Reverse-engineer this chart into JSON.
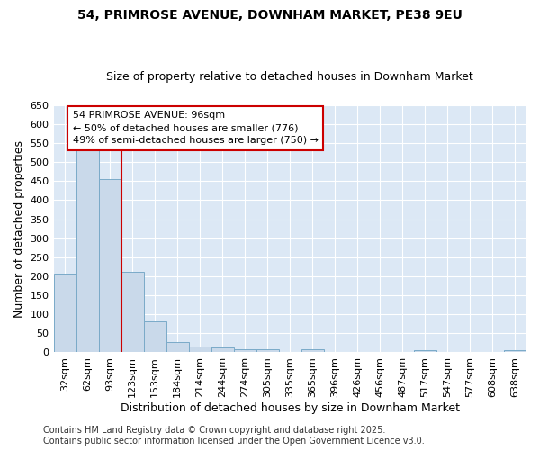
{
  "title": "54, PRIMROSE AVENUE, DOWNHAM MARKET, PE38 9EU",
  "subtitle": "Size of property relative to detached houses in Downham Market",
  "xlabel": "Distribution of detached houses by size in Downham Market",
  "ylabel": "Number of detached properties",
  "categories": [
    "32sqm",
    "62sqm",
    "93sqm",
    "123sqm",
    "153sqm",
    "184sqm",
    "214sqm",
    "244sqm",
    "274sqm",
    "305sqm",
    "335sqm",
    "365sqm",
    "396sqm",
    "426sqm",
    "456sqm",
    "487sqm",
    "517sqm",
    "547sqm",
    "577sqm",
    "608sqm",
    "638sqm"
  ],
  "values": [
    208,
    535,
    455,
    212,
    82,
    27,
    15,
    13,
    8,
    8,
    0,
    8,
    0,
    0,
    0,
    0,
    5,
    0,
    0,
    0,
    5
  ],
  "bar_color": "#c9d9ea",
  "bar_edge_color": "#7aaac8",
  "figure_bg_color": "#ffffff",
  "axes_bg_color": "#dce8f5",
  "grid_color": "#ffffff",
  "vline_color": "#cc0000",
  "annotation_text": "54 PRIMROSE AVENUE: 96sqm\n← 50% of detached houses are smaller (776)\n49% of semi-detached houses are larger (750) →",
  "annotation_box_facecolor": "#ffffff",
  "annotation_box_edgecolor": "#cc0000",
  "ylim": [
    0,
    650
  ],
  "yticks": [
    0,
    50,
    100,
    150,
    200,
    250,
    300,
    350,
    400,
    450,
    500,
    550,
    600,
    650
  ],
  "footnote": "Contains HM Land Registry data © Crown copyright and database right 2025.\nContains public sector information licensed under the Open Government Licence v3.0.",
  "title_fontsize": 10,
  "subtitle_fontsize": 9,
  "axis_label_fontsize": 9,
  "tick_fontsize": 8,
  "annotation_fontsize": 8,
  "footnote_fontsize": 7
}
